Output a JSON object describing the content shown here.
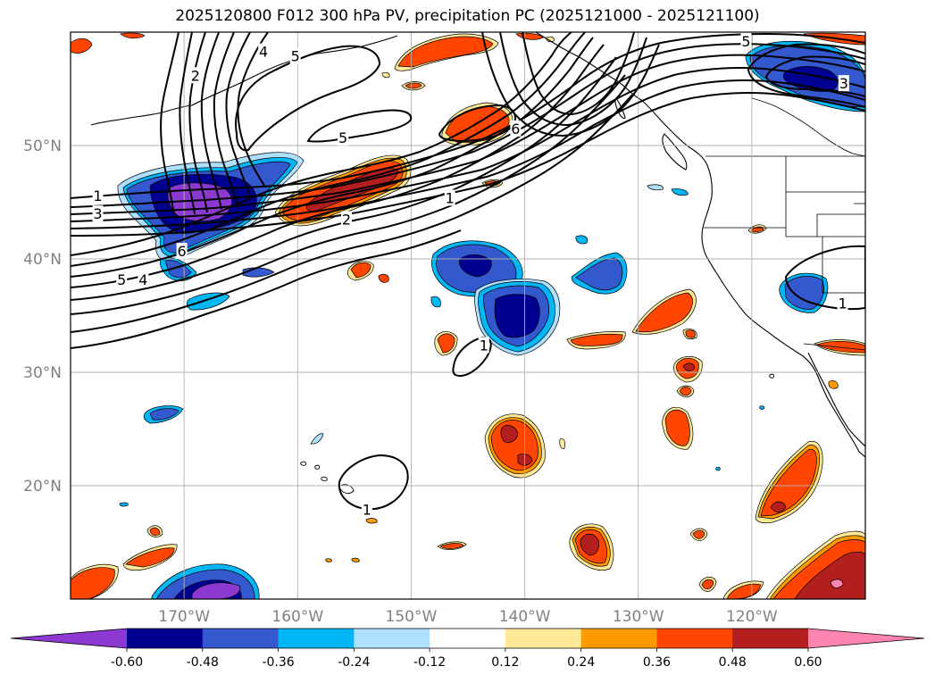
{
  "title": "2025120800 F012 300 hPa PV, precipitation PC (2025121000 - 2025121100)",
  "map": {
    "projection": "PlateCarree",
    "lon_range": [
      -180,
      -110
    ],
    "lat_range": [
      10,
      60
    ],
    "lat_ticks": [
      {
        "value": 20,
        "label": "20°N"
      },
      {
        "value": 30,
        "label": "30°N"
      },
      {
        "value": 40,
        "label": "40°N"
      },
      {
        "value": 50,
        "label": "50°N"
      }
    ],
    "lon_ticks": [
      {
        "value": -170,
        "label": "170°W"
      },
      {
        "value": -160,
        "label": "160°W"
      },
      {
        "value": -150,
        "label": "150°W"
      },
      {
        "value": -140,
        "label": "140°W"
      },
      {
        "value": -130,
        "label": "130°W"
      },
      {
        "value": -120,
        "label": "120°W"
      }
    ],
    "contour_labels": [
      {
        "text": "1",
        "lon": -177.6,
        "lat": 45.6
      },
      {
        "text": "3",
        "lon": -177.6,
        "lat": 44.0
      },
      {
        "text": "6",
        "lon": -170.2,
        "lat": 40.7
      },
      {
        "text": "5",
        "lon": -175.5,
        "lat": 38.2
      },
      {
        "text": "4",
        "lon": -173.6,
        "lat": 38.2
      },
      {
        "text": "2",
        "lon": -169.0,
        "lat": 56.2
      },
      {
        "text": "4",
        "lon": -163.0,
        "lat": 58.3
      },
      {
        "text": "5",
        "lon": -160.2,
        "lat": 57.9
      },
      {
        "text": "5",
        "lon": -156.0,
        "lat": 50.7
      },
      {
        "text": "6",
        "lon": -140.8,
        "lat": 51.5
      },
      {
        "text": "2",
        "lon": -155.7,
        "lat": 43.5
      },
      {
        "text": "1",
        "lon": -146.6,
        "lat": 45.4
      },
      {
        "text": "1",
        "lon": -143.6,
        "lat": 32.4
      },
      {
        "text": "1",
        "lon": -153.9,
        "lat": 17.9
      },
      {
        "text": "5",
        "lon": -120.5,
        "lat": 59.2
      },
      {
        "text": "3",
        "lon": -111.9,
        "lat": 55.5
      },
      {
        "text": "1",
        "lon": -112.0,
        "lat": 36.1
      }
    ]
  },
  "colorbar": {
    "levels": [
      "-0.60",
      "-0.48",
      "-0.36",
      "-0.24",
      "-0.12",
      "0.12",
      "0.24",
      "0.36",
      "0.48",
      "0.60"
    ],
    "colors": [
      "#8c39d2",
      "#000090",
      "#3458cd",
      "#00b6f5",
      "#aee0ff",
      "#ffffff",
      "#ffe997",
      "#ff9a00",
      "#ff4500",
      "#b31f1f",
      "#ff84b1"
    ]
  },
  "chart_data": {
    "type": "map",
    "title": "2025120800 F012 300 hPa PV, precipitation PC (2025121000 - 2025121100)",
    "fields": [
      {
        "name": "300 hPa PV",
        "style": "black contours",
        "contour_levels": [
          1,
          2,
          3,
          4,
          5,
          6
        ]
      },
      {
        "name": "precipitation PC",
        "style": "filled contours",
        "levels": [
          -0.6,
          -0.48,
          -0.36,
          -0.24,
          -0.12,
          0.12,
          0.24,
          0.36,
          0.48,
          0.6
        ]
      }
    ],
    "xlabel": "",
    "ylabel": "",
    "xlim": [
      -180,
      -110
    ],
    "ylim": [
      10,
      60
    ],
    "xticks": [
      "170°W",
      "160°W",
      "150°W",
      "140°W",
      "130°W",
      "120°W"
    ],
    "yticks": [
      "20°N",
      "30°N",
      "40°N",
      "50°N"
    ]
  }
}
